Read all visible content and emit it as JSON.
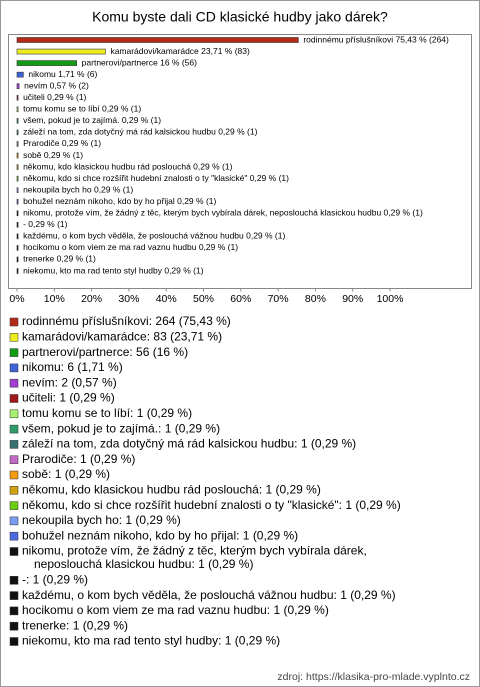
{
  "chart_data": {
    "type": "bar",
    "orientation": "horizontal",
    "title": "Komu byste dali CD klasické hudby jako dárek?",
    "categories": [
      "rodinnému příslušníkovi",
      "kamarádovi/kamarádce",
      "partnerovi/partnerce",
      "nikomu",
      "nevím",
      "učiteli",
      "tomu komu se to líbí",
      "všem, pokud je to zajímá.",
      "záleží na tom, zda dotyčný má rád kalsickou hudbu",
      "Prarodiče",
      "sobě",
      "někomu, kdo klasickou hudbu rád poslouchá",
      "někomu, kdo si chce rozšířit hudební znalosti o ty \"klasické\"",
      "nekoupila bych ho",
      "bohužel neznám nikoho, kdo by ho přijal",
      "nikomu, protože vím, že žádný z těc, kterým bych vybírala dárek, neposlouchá klasickou hudbu",
      "-",
      "každému, o kom bych věděla, že poslouchá vážnou hudbu",
      "hocikomu o kom viem ze ma rad vaznu hudbu",
      "trenerke",
      "niekomu, kto ma rad tento styl hudby"
    ],
    "values": [
      75.43,
      23.71,
      16,
      1.71,
      0.57,
      0.29,
      0.29,
      0.29,
      0.29,
      0.29,
      0.29,
      0.29,
      0.29,
      0.29,
      0.29,
      0.29,
      0.29,
      0.29,
      0.29,
      0.29,
      0.29
    ],
    "value_labels": [
      "rodinnému příslušníkovi 75,43 % (264)",
      "kamarádovi/kamarádce 23,71 % (83)",
      "partnerovi/partnerce 16 % (56)",
      "nikomu 1,71 % (6)",
      "nevím 0,57 % (2)",
      "učiteli 0,29 % (1)",
      "tomu komu se to líbí 0,29 % (1)",
      "všem, pokud je to zajímá. 0,29 % (1)",
      "záleží na tom, zda dotyčný má rád kalsickou hudbu 0,29 % (1)",
      "Prarodiče 0,29 % (1)",
      "sobě 0,29 % (1)",
      "někomu, kdo klasickou hudbu rád poslouchá 0,29 % (1)",
      "někomu, kdo si chce rozšířit hudební znalosti o ty \"klasické\" 0,29 % (1)",
      "nekoupila bych ho 0,29 % (1)",
      "bohužel neznám nikoho, kdo by ho přijal 0,29 % (1)",
      "nikomu, protože vím, že žádný z těc, kterým bych vybírala dárek, neposlouchá klasickou hudbu 0,29 % (1)",
      "- 0,29 % (1)",
      "každému, o kom bych věděla, že poslouchá vážnou hudbu 0,29 % (1)",
      "hocikomu o kom viem ze ma rad vaznu hudbu 0,29 % (1)",
      "trenerke 0,29 % (1)",
      "niekomu, kto ma rad tento styl hudby 0,29 % (1)"
    ],
    "legend_labels": [
      [
        "rodinnému příslušníkovi: 264 (75,43 %)"
      ],
      [
        "kamarádovi/kamarádce: 83 (23,71 %)"
      ],
      [
        "partnerovi/partnerce: 56 (16 %)"
      ],
      [
        "nikomu: 6 (1,71 %)"
      ],
      [
        "nevím: 2 (0,57 %)"
      ],
      [
        "učiteli: 1 (0,29 %)"
      ],
      [
        "tomu komu se to líbí: 1 (0,29 %)"
      ],
      [
        "všem, pokud je to zajímá.: 1 (0,29 %)"
      ],
      [
        "záleží na tom, zda dotyčný má rád kalsickou hudbu: 1 (0,29 %)"
      ],
      [
        "Prarodiče: 1 (0,29 %)"
      ],
      [
        "sobě: 1 (0,29 %)"
      ],
      [
        "někomu, kdo klasickou hudbu rád poslouchá: 1 (0,29 %)"
      ],
      [
        "někomu, kdo si chce rozšířit hudební znalosti o ty \"klasické\": 1 (0,29 %)"
      ],
      [
        "nekoupila bych ho: 1 (0,29 %)"
      ],
      [
        "bohužel neznám nikoho, kdo by ho přijal: 1 (0,29 %)"
      ],
      [
        "nikomu, protože vím, že žádný z těc, kterým bych vybírala dárek,",
        "neposlouchá klasickou hudbu: 1 (0,29 %)"
      ],
      [
        "-: 1 (0,29 %)"
      ],
      [
        "každému, o kom bych věděla, že poslouchá vážnou hudbu: 1 (0,29 %)"
      ],
      [
        "hocikomu o kom viem ze ma rad vaznu hudbu: 1 (0,29 %)"
      ],
      [
        "trenerke: 1 (0,29 %)"
      ],
      [
        "niekomu, kto ma rad tento styl hudby: 1 (0,29 %)"
      ]
    ],
    "colors": [
      "#b22a1a",
      "#ecec20",
      "#129a12",
      "#3f63d6",
      "#a23fcf",
      "#a01818",
      "#a8f070",
      "#2f9a6a",
      "#3a7070",
      "#c46ac8",
      "#f29a10",
      "#d0a010",
      "#6ccc10",
      "#7a9cf0",
      "#4a6ae0",
      "#111111",
      "#111111",
      "#111111",
      "#111111",
      "#111111",
      "#111111"
    ],
    "xlim": [
      0,
      100
    ],
    "xticks": [
      {
        "value": 0,
        "label": "0%"
      },
      {
        "value": 10,
        "label": "10%"
      },
      {
        "value": 20,
        "label": "20%"
      },
      {
        "value": 30,
        "label": "30%"
      },
      {
        "value": 40,
        "label": "40%"
      },
      {
        "value": 50,
        "label": "50%"
      },
      {
        "value": 60,
        "label": "60%"
      },
      {
        "value": 70,
        "label": "70%"
      },
      {
        "value": 80,
        "label": "80%"
      },
      {
        "value": 90,
        "label": "90%"
      },
      {
        "value": 100,
        "label": "100%"
      }
    ],
    "grid": false,
    "source": "zdroj: https://klasika-pro-mlade.vyplnto.cz"
  }
}
